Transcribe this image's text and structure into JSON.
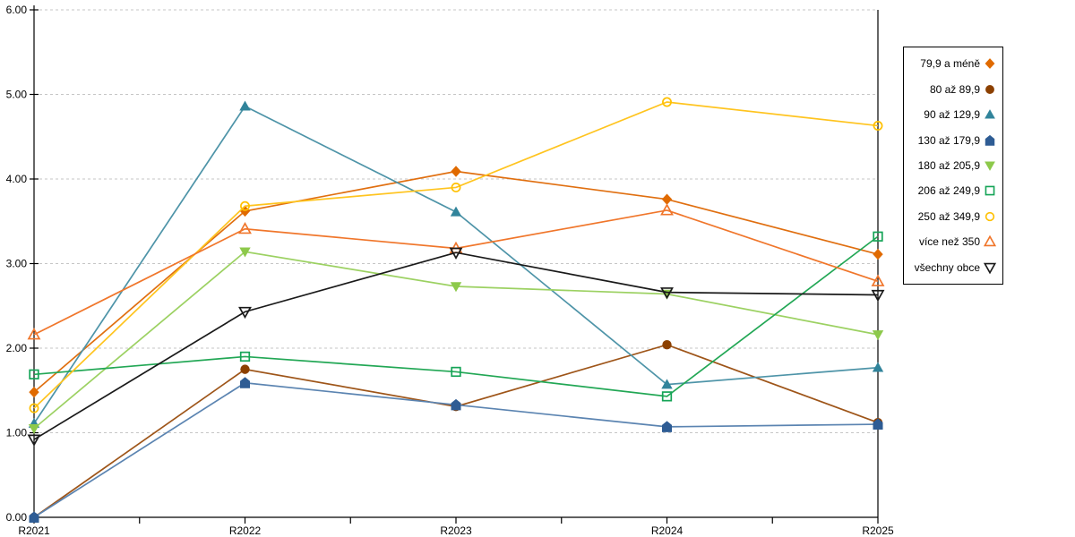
{
  "figure": {
    "background": "#FFFFFF",
    "axis_color": "#000000",
    "gridline_color": "#C6C6C6",
    "tick_label_color": "#000000"
  },
  "chart_data": {
    "type": "line",
    "title": "",
    "xlabel": "",
    "ylabel": "",
    "categories": [
      "R2021",
      "R2022",
      "R2023",
      "R2024",
      "R2025"
    ],
    "y_tick_labels": [
      "0.00",
      "1.00",
      "2.00",
      "3.00",
      "4.00",
      "5.00",
      "6.00"
    ],
    "ylim": [
      0,
      6
    ],
    "grid": "horizontal-dashed",
    "legend_position": "right-outside-boxed",
    "series": [
      {
        "name": "79,9 a méně",
        "marker": "diamond",
        "color": "#E06A00",
        "line_color": "#E06F10",
        "values": [
          1.48,
          3.62,
          4.09,
          3.76,
          3.11
        ]
      },
      {
        "name": "80 až 89,9",
        "marker": "circle",
        "color": "#8C4000",
        "line_color": "#9E5519",
        "values": [
          0.0,
          1.75,
          1.31,
          2.04,
          1.12
        ]
      },
      {
        "name": "90 až 129,9",
        "marker": "triangle-up",
        "color": "#31849B",
        "line_color": "#4E94A8",
        "values": [
          1.11,
          4.86,
          3.61,
          1.57,
          1.77
        ]
      },
      {
        "name": "130 až 179,9",
        "marker": "pentagon",
        "color": "#2E5C94",
        "line_color": "#5B84B1",
        "values": [
          0.0,
          1.59,
          1.33,
          1.07,
          1.1
        ]
      },
      {
        "name": "180 až 205,9",
        "marker": "triangle-down",
        "color": "#8DC94B",
        "line_color": "#9CD162",
        "values": [
          1.05,
          3.14,
          2.73,
          2.64,
          2.16
        ]
      },
      {
        "name": "206 až 249,9",
        "marker": "square-open",
        "color": "#15A457",
        "line_color": "#22A755",
        "values": [
          1.69,
          1.9,
          1.72,
          1.43,
          3.32
        ]
      },
      {
        "name": "250 až 349,9",
        "marker": "circle-open",
        "color": "#FFC000",
        "line_color": "#FFC41F",
        "values": [
          1.29,
          3.68,
          3.9,
          4.91,
          4.63
        ]
      },
      {
        "name": "více než 350",
        "marker": "triangle-up-open",
        "color": "#F0762B",
        "line_color": "#F0762B",
        "values": [
          2.16,
          3.41,
          3.18,
          3.63,
          2.79
        ]
      },
      {
        "name": "všechny obce",
        "marker": "triangle-down-open",
        "color": "#1A1A1A",
        "line_color": "#1A1A1A",
        "values": [
          0.92,
          2.43,
          3.13,
          2.66,
          2.63
        ]
      }
    ]
  }
}
